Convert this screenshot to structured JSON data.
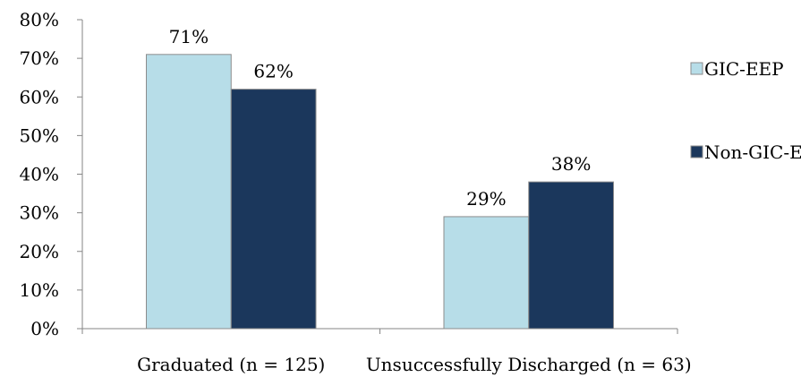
{
  "chart_data": {
    "type": "bar",
    "categories": [
      "Graduated (n = 125)",
      "Unsuccessfully Discharged (n = 63)"
    ],
    "series": [
      {
        "name": "GIC-EEP",
        "values": [
          71,
          29
        ],
        "color": "#b7dde8",
        "labels": [
          "71%",
          "29%"
        ]
      },
      {
        "name": "Non-GIC-EEP",
        "values": [
          62,
          38
        ],
        "color": "#1b375c",
        "labels": [
          "62%",
          "38%"
        ]
      }
    ],
    "ylim": [
      0,
      80
    ],
    "yticks": [
      0,
      10,
      20,
      30,
      40,
      50,
      60,
      70,
      80
    ],
    "ytick_labels": [
      "0%",
      "10%",
      "20%",
      "30%",
      "40%",
      "50%",
      "60%",
      "70%",
      "80%"
    ],
    "title": "",
    "xlabel": "",
    "ylabel": "",
    "grid": false,
    "legend_position": "right"
  }
}
